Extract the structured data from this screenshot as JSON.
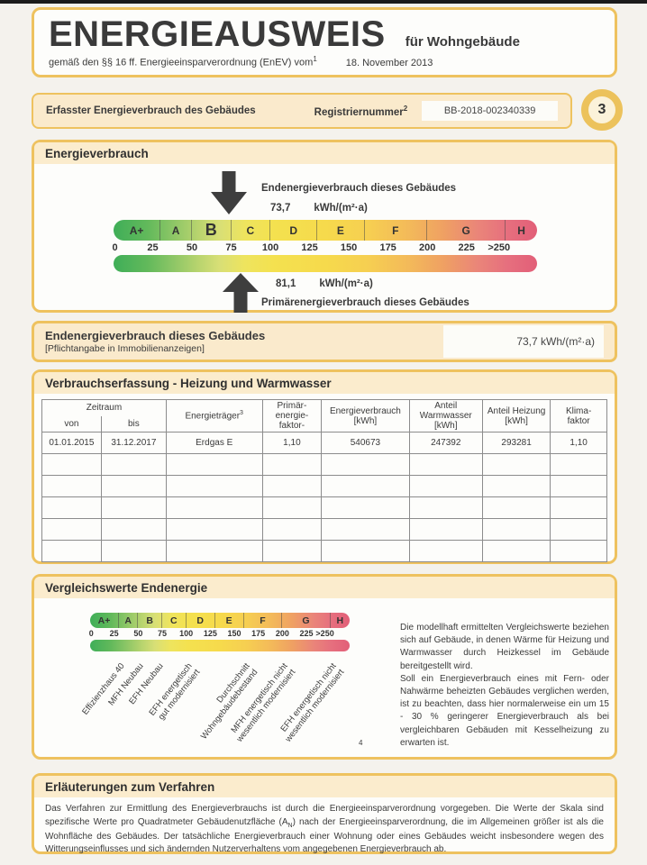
{
  "header": {
    "title": "ENERGIEAUSWEIS",
    "subtitle": "für Wohngebäude",
    "law_line": "gemäß den §§ 16 ff. Energieeinsparverordnung (EnEV) vom",
    "law_sup": "1",
    "law_date": "18. November 2013"
  },
  "registry": {
    "label": "Erfasster Energieverbrauch des Gebäudes",
    "reg_label": "Registriernummer",
    "reg_sup": "2",
    "reg_value": "BB-2018-002340339",
    "page_number": "3"
  },
  "consumption_section": {
    "title": "Energieverbrauch",
    "end_label": "Endenergieverbrauch dieses Gebäudes",
    "end_value": "73,7",
    "end_unit": "kWh/(m²·a)",
    "primary_value": "81,1",
    "primary_unit": "kWh/(m²·a)",
    "primary_label": "Primärenergieverbrauch dieses Gebäudes"
  },
  "scale": {
    "max": 270,
    "rating_letter": "B",
    "end_value_num": 73.7,
    "primary_value_num": 81.1,
    "segments": [
      {
        "letter": "A+",
        "from": 0,
        "to": 30
      },
      {
        "letter": "A",
        "from": 30,
        "to": 50
      },
      {
        "letter": "B",
        "from": 50,
        "to": 75
      },
      {
        "letter": "C",
        "from": 75,
        "to": 100
      },
      {
        "letter": "D",
        "from": 100,
        "to": 130
      },
      {
        "letter": "E",
        "from": 130,
        "to": 160
      },
      {
        "letter": "F",
        "from": 160,
        "to": 200
      },
      {
        "letter": "G",
        "from": 200,
        "to": 250
      },
      {
        "letter": "H",
        "from": 250,
        "to": 270
      }
    ],
    "ticks": [
      {
        "label": "0",
        "u": 0
      },
      {
        "label": "25",
        "u": 25
      },
      {
        "label": "50",
        "u": 50
      },
      {
        "label": "75",
        "u": 75
      },
      {
        "label": "100",
        "u": 100
      },
      {
        "label": "125",
        "u": 125
      },
      {
        "label": "150",
        "u": 150
      },
      {
        "label": "175",
        "u": 175
      },
      {
        "label": "200",
        "u": 200
      },
      {
        "label": "225",
        "u": 225
      },
      {
        "label": ">250",
        "u": 250
      }
    ],
    "gradient": [
      "#3fae58 0%",
      "#62b95b 8%",
      "#8cc666 14%",
      "#b8d46e 20%",
      "#d8df76 25%",
      "#eee45e 31%",
      "#f4e14f 38%",
      "#f6da4c 50%",
      "#f6cf51 60%",
      "#f3b95a 70%",
      "#efa063 78%",
      "#ea8579 86%",
      "#e66f7e 93%",
      "#e25f78 100%"
    ]
  },
  "end_energy_box": {
    "title": "Endenergieverbrauch dieses Gebäudes",
    "subtitle": "[Pflichtangabe in Immobilienanzeigen]",
    "value": "73,7 kWh/(m²·a)"
  },
  "table_section": {
    "title": "Verbrauchserfassung - Heizung und Warmwasser",
    "zeitraum_label": "Zeitraum",
    "headers": [
      {
        "label": "von"
      },
      {
        "label": "bis"
      },
      {
        "label": "Energieträger",
        "sup": "3"
      },
      {
        "label": "Primär-\nenergie-\nfaktor-"
      },
      {
        "label": "Energieverbrauch\n[kWh]"
      },
      {
        "label": "Anteil\nWarmwasser\n[kWh]"
      },
      {
        "label": "Anteil Heizung\n[kWh]"
      },
      {
        "label": "Klima-\nfaktor"
      }
    ],
    "rows": [
      [
        "01.01.2015",
        "31.12.2017",
        "Erdgas E",
        "1,10",
        "540673",
        "247392",
        "293281",
        "1,10"
      ]
    ],
    "empty_row_count": 5
  },
  "comparison_section": {
    "title": "Vergleichswerte Endenergie",
    "footnote": "4",
    "labels": [
      {
        "text": "Effizienzhaus 40",
        "u": 30
      },
      {
        "text": "MFH Neubau",
        "u": 50
      },
      {
        "text": "EFH Neubau",
        "u": 70
      },
      {
        "text": "EFH energetisch\ngut modernisiert",
        "u": 100
      },
      {
        "text": "Durchschnitt\nWohngebäudebestand",
        "u": 160
      },
      {
        "text": "MFH energetisch nicht\nwesentlich modernisiert",
        "u": 200
      },
      {
        "text": "EFH energetisch nicht\nwesentlich modernisiert",
        "u": 250
      }
    ],
    "para1": "Die modellhaft ermittelten Vergleichswerte beziehen sich auf Gebäude, in denen Wärme für Heizung und Warmwasser durch Heizkessel im Gebäude bereitgestellt wird.",
    "para2": "Soll ein Energieverbrauch eines mit Fern- oder Nahwärme beheizten Gebäudes verglichen werden, ist zu beachten, dass hier normalerweise ein um 15 - 30 % geringerer Energieverbrauch als bei vergleichbaren Gebäuden mit Kesselheizung zu erwarten ist."
  },
  "explanation_section": {
    "title": "Erläuterungen zum Verfahren",
    "body_1": "Das Verfahren zur Ermittlung des Energieverbrauchs ist durch die Energieeinsparverordnung vorgegeben. Die Werte der Skala sind spezifische Werte pro Quadratmeter Gebäudenutzfläche (A",
    "body_sub": "N",
    "body_2": ") nach der Energieeinsparverordnung, die im Allgemeinen größer ist als die Wohnfläche des Gebäudes. Der tatsächliche Energieverbrauch einer Wohnung oder eines Gebäudes weicht insbesondere wegen des Witterungseinflusses und sich ändernden Nutzerverhaltens vom angegebenen Energieverbrauch ab."
  },
  "colors": {
    "accent_gold": "#eec25f",
    "cream": "#fbeccd",
    "scale_green": "#3fae58",
    "scale_red": "#e25f78"
  },
  "chart_data": {
    "type": "scale",
    "title": "Energieverbrauch",
    "unit": "kWh/(m²·a)",
    "categories": [
      "A+",
      "A",
      "B",
      "C",
      "D",
      "E",
      "F",
      "G",
      "H"
    ],
    "class_boundaries": [
      0,
      30,
      50,
      75,
      100,
      130,
      160,
      200,
      250
    ],
    "ticks": [
      0,
      25,
      50,
      75,
      100,
      125,
      150,
      175,
      200,
      225,
      250
    ],
    "end_energy_value": 73.7,
    "primary_energy_value": 81.1,
    "rating": "B",
    "comparison_values": [
      [
        "Effizienzhaus 40",
        30
      ],
      [
        "MFH Neubau",
        50
      ],
      [
        "EFH Neubau",
        70
      ],
      [
        "EFH energetisch gut modernisiert",
        100
      ],
      [
        "Durchschnitt Wohngebäudebestand",
        160
      ],
      [
        "MFH energetisch nicht wesentlich modernisiert",
        200
      ],
      [
        "EFH energetisch nicht wesentlich modernisiert",
        250
      ]
    ]
  }
}
